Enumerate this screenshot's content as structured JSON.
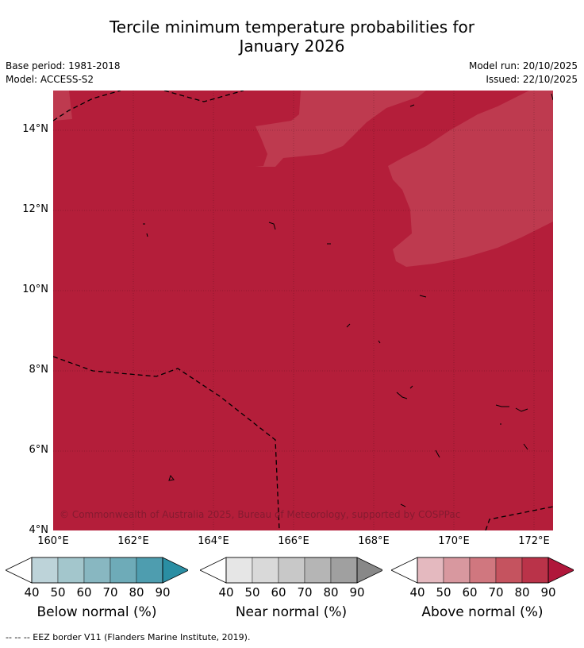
{
  "title_line1": "Tercile minimum temperature probabilities for",
  "title_line2": "January 2026",
  "meta": {
    "base_period": "Base period: 1981-2018",
    "model": "Model: ACCESS-S2",
    "model_run": "Model run: 20/10/2025",
    "issued": "Issued: 22/10/2025"
  },
  "map": {
    "lat_labels": [
      "14°N",
      "12°N",
      "10°N",
      "8°N",
      "6°N",
      "4°N"
    ],
    "lon_labels": [
      "160°E",
      "162°E",
      "164°E",
      "166°E",
      "168°E",
      "170°E",
      "172°E"
    ],
    "copyright": "© Commonwealth of Australia 2025, Bureau of Meteorology, supported by COSPPac",
    "colors": {
      "above_90": "#b41e3a",
      "above_80": "#be3a4f",
      "eez_border": "#000000"
    }
  },
  "colorbars": [
    {
      "title": "Below normal (%)",
      "ticks": [
        "40",
        "50",
        "60",
        "70",
        "80",
        "90"
      ],
      "colors": [
        "#ffffff",
        "#bdd3d9",
        "#a3c6cc",
        "#88b7c1",
        "#6eabb8",
        "#4e9daf",
        "#2a8ea3"
      ]
    },
    {
      "title": "Near normal (%)",
      "ticks": [
        "40",
        "50",
        "60",
        "70",
        "80",
        "90"
      ],
      "colors": [
        "#ffffff",
        "#e6e6e6",
        "#d9d9d9",
        "#c8c8c8",
        "#b5b5b5",
        "#a0a0a0",
        "#888888"
      ]
    },
    {
      "title": "Above normal (%)",
      "ticks": [
        "40",
        "50",
        "60",
        "70",
        "80",
        "90"
      ],
      "colors": [
        "#ffffff",
        "#e4b9bf",
        "#d8989f",
        "#d0777f",
        "#c5535f",
        "#ba3349",
        "#b0173b"
      ]
    }
  ],
  "footer": "--  --  -- EEZ border V11 (Flanders Marine Institute, 2019)."
}
